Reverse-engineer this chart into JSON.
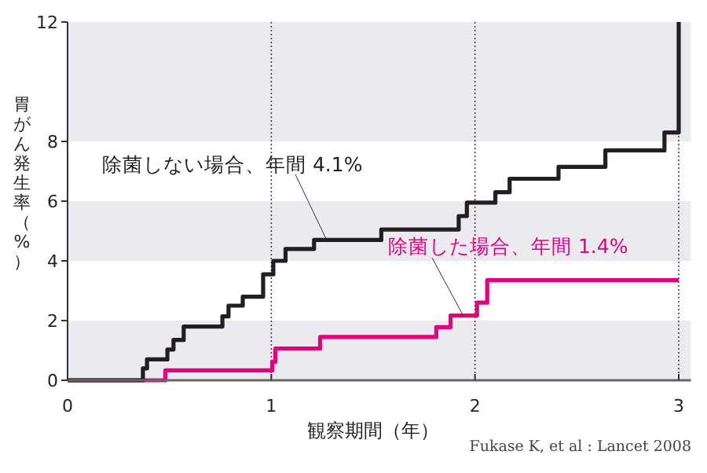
{
  "chart_data": {
    "type": "step",
    "xlabel": "観察期間（年）",
    "ylabel": "胃がん発生率（%）",
    "xlim": [
      0,
      3.06
    ],
    "ylim": [
      0,
      12
    ],
    "xticks": [
      0,
      1,
      2,
      3
    ],
    "yticks": [
      0,
      2,
      4,
      6,
      8,
      12
    ],
    "grid": "x",
    "bands": [
      {
        "axis": "y",
        "from": 0,
        "to": 2,
        "color": "#ebebef"
      },
      {
        "axis": "y",
        "from": 4,
        "to": 6,
        "color": "#ebebef"
      },
      {
        "axis": "y",
        "from": 8,
        "to": 12,
        "color": "#ebebef"
      }
    ],
    "series": [
      {
        "name": "除菌しない場合、年間 4.1%",
        "color": "#231f20",
        "x": [
          0,
          0.37,
          0.39,
          0.49,
          0.52,
          0.57,
          0.76,
          0.79,
          0.86,
          0.96,
          1.01,
          1.07,
          1.21,
          1.54,
          1.92,
          1.96,
          2.1,
          2.17,
          2.41,
          2.64,
          2.93,
          3.0
        ],
        "values": [
          0,
          0.4,
          0.7,
          1.03,
          1.35,
          1.8,
          2.14,
          2.5,
          2.8,
          3.55,
          4.0,
          4.4,
          4.7,
          5.05,
          5.5,
          5.95,
          6.3,
          6.75,
          7.15,
          7.7,
          8.3,
          12
        ]
      },
      {
        "name": "除菌した場合、年間 1.4%",
        "color": "#e6007e",
        "x": [
          0,
          0.48,
          1.005,
          1.02,
          1.24,
          1.81,
          1.88,
          2.01,
          2.06,
          3.0
        ],
        "values": [
          0,
          0.33,
          0.62,
          1.06,
          1.45,
          1.78,
          2.17,
          2.6,
          3.35,
          3.35
        ]
      }
    ],
    "annotations": [
      "Fukase K, et al : Lancet 2008"
    ]
  }
}
